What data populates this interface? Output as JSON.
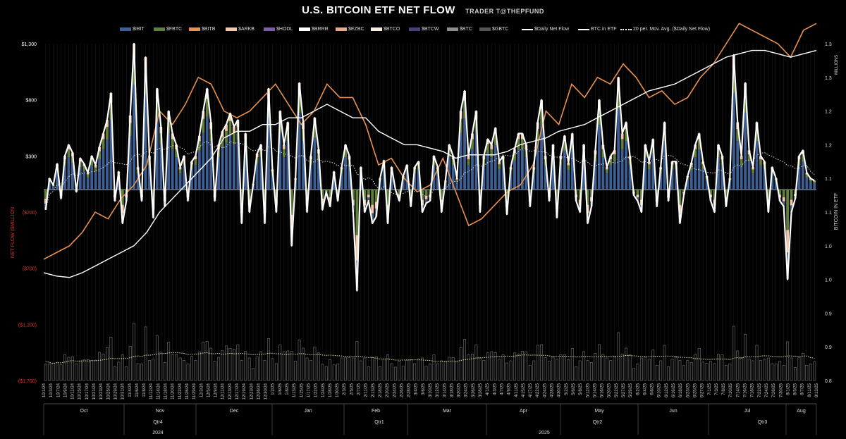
{
  "title": "U.S. BITCOIN ETF NET FLOW",
  "subtitle": "TRADER T@THEPFUND",
  "legend": [
    {
      "label": "$IBIT",
      "color": "#3e5f93",
      "kind": "bar"
    },
    {
      "label": "$FBTC",
      "color": "#5f7f3a",
      "kind": "bar"
    },
    {
      "label": "$BITB",
      "color": "#e8904f",
      "kind": "bar"
    },
    {
      "label": "$ARKB",
      "color": "#f2c6a8",
      "kind": "bar"
    },
    {
      "label": "$HODL",
      "color": "#7a5fa6",
      "kind": "bar"
    },
    {
      "label": "$BRRR",
      "color": "#ffffff",
      "kind": "bar"
    },
    {
      "label": "$EZBC",
      "color": "#e6a98a",
      "kind": "bar"
    },
    {
      "label": "$BTCO",
      "color": "#f5f0dc",
      "kind": "bar"
    },
    {
      "label": "$BTCW",
      "color": "#4a3f7a",
      "kind": "bar"
    },
    {
      "label": "$BTC",
      "color": "#8c8c8c",
      "kind": "bar"
    },
    {
      "label": "$GBTC",
      "color": "#555555",
      "kind": "bar"
    },
    {
      "label": "$Daily Net Flow",
      "color": "#ffffff",
      "kind": "line"
    },
    {
      "label": "BTC in ETF",
      "color": "#ffffff",
      "kind": "line"
    },
    {
      "label": "20 per. Mov. Avg. ($Daily Net Flow)",
      "color": "#ffffff",
      "kind": "dotted"
    }
  ],
  "chart_data": {
    "type": "bar",
    "title": "U.S. BITCOIN ETF NET FLOW",
    "ylabel": "NET FLOW ($MILLION",
    "y2label": "BITCOIN IN ETF",
    "y2unit": "MILLIONS",
    "ylim": [
      -1700,
      1300
    ],
    "y2lim": [
      0.8,
      1.3
    ],
    "yticks": [
      "$1,300",
      "$800",
      "$300",
      "($200)",
      "($700)",
      "($1,200)",
      "($1,700)"
    ],
    "y2ticks": [
      "1.3",
      "1.3",
      "1.2",
      "1.2",
      "1.1",
      "1.1",
      "1.0",
      "1.0",
      "0.9",
      "0.9",
      "0.8"
    ],
    "x_date_labels": [
      "10/1/24",
      "10/3/24",
      "10/7/24",
      "10/9/24",
      "10/11/24",
      "10/15/24",
      "10/17/24",
      "10/21/24",
      "10/23/24",
      "10/25/24",
      "10/29/24",
      "10/31/24",
      "11/4/24",
      "11/6/24",
      "11/8/24",
      "11/12/24",
      "11/14/24",
      "11/18/24",
      "11/20/24",
      "11/22/24",
      "11/26/24",
      "11/29/24",
      "12/3/24",
      "12/5/24",
      "12/9/24",
      "12/11/24",
      "12/13/24",
      "12/17/24",
      "12/19/24",
      "12/23/24",
      "12/26/24",
      "12/30/24",
      "1/2/25",
      "1/6/25",
      "1/8/25",
      "1/13/25",
      "1/15/25",
      "1/17/25",
      "1/22/25",
      "1/24/25",
      "1/28/25",
      "1/30/25",
      "2/3/25",
      "2/5/25",
      "2/7/25",
      "2/11/25",
      "2/13/25",
      "2/18/25",
      "2/20/25",
      "2/24/25",
      "2/26/25",
      "2/28/25",
      "3/4/25",
      "3/6/25",
      "3/10/25",
      "3/12/25",
      "3/14/25",
      "3/18/25",
      "3/20/25",
      "3/24/25",
      "3/26/25",
      "3/28/25",
      "4/1/25",
      "4/3/25",
      "4/7/25",
      "4/9/25",
      "4/11/25",
      "4/15/25",
      "4/17/25",
      "4/22/25",
      "4/24/25",
      "4/28/25",
      "4/30/25",
      "5/2/25",
      "5/6/25",
      "5/8/25",
      "5/12/25",
      "5/14/25",
      "5/16/25",
      "5/20/25",
      "5/22/25",
      "5/27/25",
      "5/29/25",
      "6/2/25",
      "6/4/25",
      "6/6/25",
      "6/10/25",
      "6/12/25",
      "6/16/25",
      "6/18/25",
      "6/23/25",
      "6/25/25",
      "6/27/25",
      "7/1/25",
      "7/3/25",
      "7/8/25",
      "7/10/25",
      "7/14/25",
      "7/16/25",
      "7/18/25",
      "7/22/25",
      "7/24/25",
      "7/28/25",
      "7/30/25",
      "8/1/25",
      "8/5/25",
      "8/7/25",
      "8/11/25",
      "8/13/25"
    ],
    "months": [
      "Oct",
      "Nov",
      "Dec",
      "Jan",
      "Feb",
      "Mar",
      "Apr",
      "May",
      "Jun",
      "Jul",
      "Aug"
    ],
    "quarters": [
      "Qtr4",
      "Qtr1",
      "Qtr2",
      "Qtr3"
    ],
    "years": [
      "2024",
      "2025"
    ],
    "daily_net_flow": [
      -180,
      100,
      40,
      230,
      -80,
      300,
      400,
      330,
      -20,
      280,
      230,
      150,
      300,
      220,
      380,
      500,
      620,
      860,
      -100,
      160,
      -300,
      -100,
      660,
      1300,
      200,
      -100,
      1180,
      300,
      -250,
      900,
      560,
      -150,
      700,
      500,
      400,
      200,
      300,
      -100,
      250,
      300,
      480,
      700,
      900,
      600,
      -100,
      400,
      520,
      580,
      680,
      560,
      620,
      -300,
      500,
      -200,
      50,
      320,
      400,
      -300,
      900,
      180,
      -200,
      700,
      400,
      600,
      -500,
      100,
      950,
      600,
      -200,
      300,
      640,
      360,
      -180,
      -20,
      -150,
      160,
      -100,
      200,
      400,
      300,
      -200,
      -900,
      200,
      -200,
      -100,
      -300,
      -240,
      100,
      260,
      -300,
      200,
      0,
      -100,
      120,
      220,
      -150,
      200,
      250,
      -200,
      -120,
      -100,
      300,
      200,
      -200,
      80,
      400,
      300,
      100,
      700,
      880,
      300,
      500,
      700,
      -200,
      300,
      450,
      400,
      550,
      250,
      300,
      -220,
      200,
      360,
      500,
      500,
      400,
      -150,
      200,
      600,
      800,
      300,
      -100,
      400,
      -250,
      300,
      480,
      240,
      500,
      -100,
      -200,
      400,
      -300,
      -150,
      350,
      800,
      400,
      200,
      300,
      350,
      1000,
      500,
      600,
      300,
      -50,
      -100,
      -200,
      400,
      250,
      450,
      -150,
      200,
      600,
      -100,
      250,
      250,
      -300,
      -50,
      120,
      240,
      400,
      500,
      250,
      120,
      -100,
      -200,
      400,
      300,
      -150,
      100,
      1200,
      600,
      300,
      950,
      350,
      200,
      600,
      300,
      250,
      -200,
      200,
      100,
      -100,
      -150,
      -800,
      -200,
      -80,
      300,
      350,
      150,
      100,
      80
    ],
    "btc_in_etf": [
      0.96,
      0.955,
      0.953,
      0.96,
      0.97,
      0.98,
      0.99,
      1.0,
      1.02,
      1.05,
      1.07,
      1.09,
      1.11,
      1.13,
      1.16,
      1.17,
      1.17,
      1.18,
      1.18,
      1.19,
      1.19,
      1.2,
      1.21,
      1.2,
      1.19,
      1.19,
      1.17,
      1.16,
      1.15,
      1.15,
      1.145,
      1.14,
      1.13,
      1.135,
      1.135,
      1.135,
      1.14,
      1.15,
      1.155,
      1.16,
      1.17,
      1.175,
      1.18,
      1.19,
      1.2,
      1.21,
      1.22,
      1.23,
      1.235,
      1.24,
      1.25,
      1.26,
      1.27,
      1.28,
      1.285,
      1.29,
      1.29,
      1.285,
      1.28,
      1.285,
      1.29
    ],
    "btc_in_etf_x_days": [
      0,
      5,
      10,
      15,
      20,
      25,
      30,
      35,
      40,
      45,
      50,
      55,
      60,
      65,
      70,
      75,
      80,
      85,
      90,
      95,
      100,
      105,
      110,
      115,
      120,
      125,
      130,
      135,
      140,
      145,
      150,
      155,
      160,
      165,
      170,
      175,
      180,
      185,
      190,
      195,
      200,
      205,
      210,
      215,
      220,
      225,
      230,
      235,
      240,
      245,
      250,
      255,
      260,
      265,
      270,
      275,
      280,
      285,
      290,
      295,
      300
    ]
  }
}
